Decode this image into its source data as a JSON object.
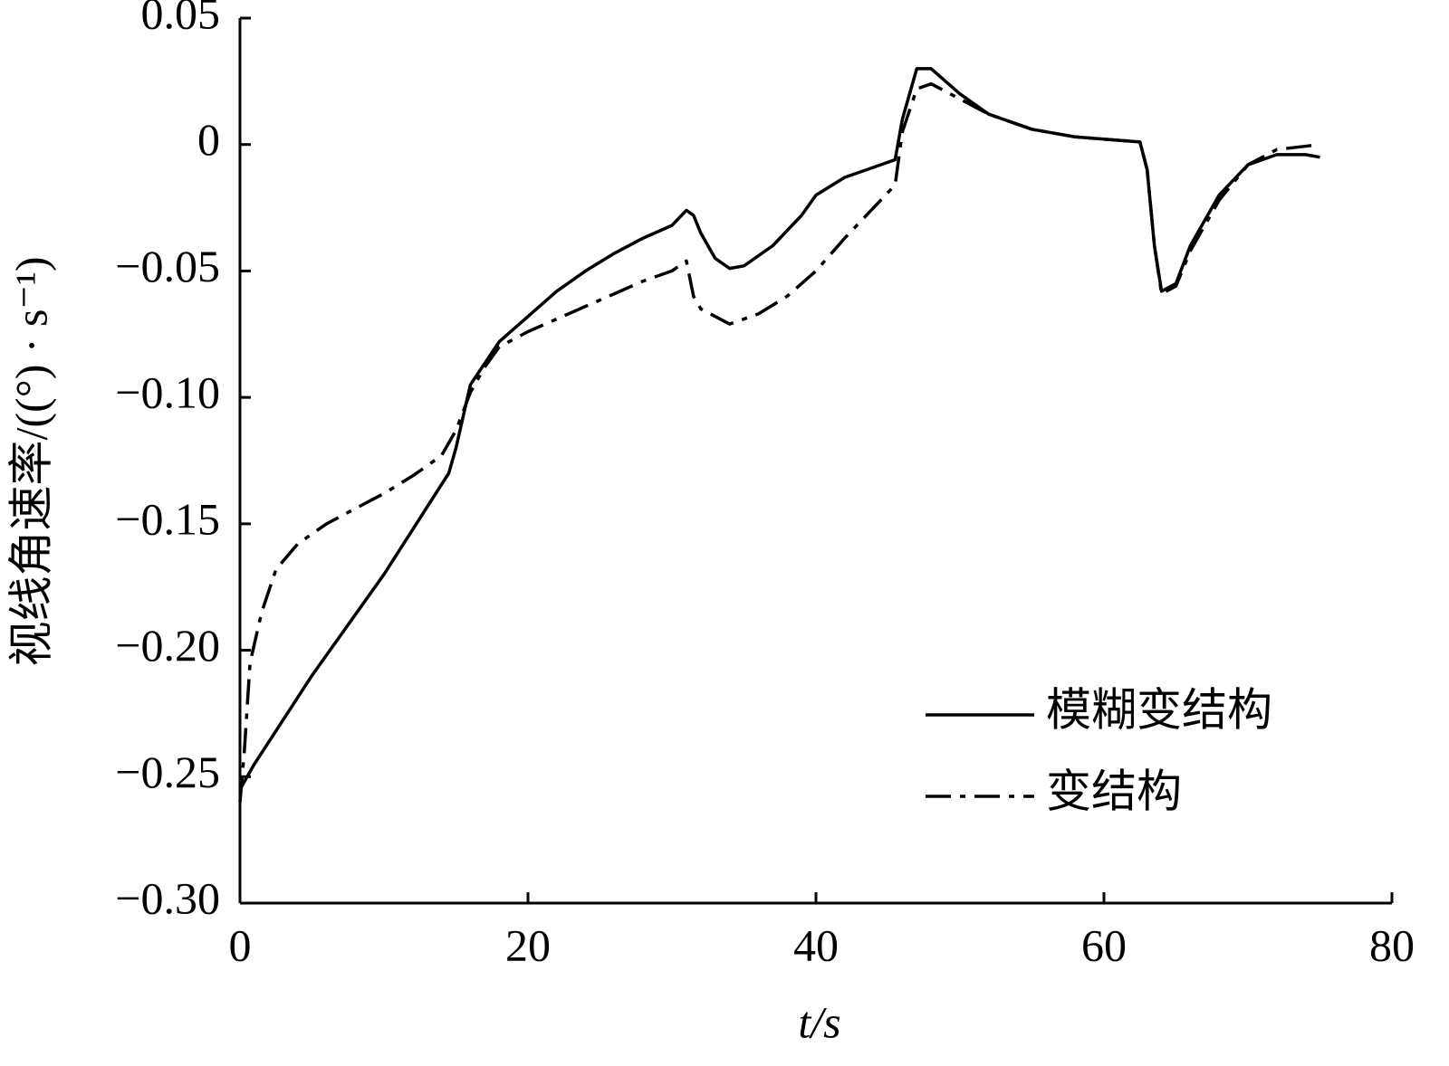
{
  "chart_data": {
    "type": "line",
    "xlabel": "t/s",
    "ylabel": "视线角速率/((°) · s⁻¹)",
    "xlim": [
      0,
      80
    ],
    "xticks": [
      0,
      20,
      40,
      60,
      80
    ],
    "ylim": [
      -0.3,
      0.05
    ],
    "yticks": [
      {
        "value": -0.3,
        "label": "−0.30"
      },
      {
        "value": -0.25,
        "label": "−0.25"
      },
      {
        "value": -0.2,
        "label": "−0.20"
      },
      {
        "value": -0.15,
        "label": "−0.15"
      },
      {
        "value": -0.1,
        "label": "−0.10"
      },
      {
        "value": -0.05,
        "label": "−0.05"
      },
      0,
      0.05
    ],
    "legend": "lower right",
    "series": [
      {
        "name": "模糊变结构",
        "color": "#000000",
        "line_style": "solid",
        "x": [
          0,
          1,
          5,
          10,
          14.5,
          15,
          16,
          18,
          20,
          22,
          24,
          26,
          28,
          30,
          31,
          31.5,
          32,
          33,
          34,
          35,
          37,
          39,
          40,
          42,
          44,
          45.5,
          46,
          47,
          48,
          50,
          52,
          55,
          58,
          62.5,
          63,
          63.5,
          64,
          65,
          66,
          68,
          70,
          72,
          74,
          75
        ],
        "values": [
          -0.255,
          -0.245,
          -0.21,
          -0.17,
          -0.13,
          -0.12,
          -0.095,
          -0.078,
          -0.068,
          -0.058,
          -0.05,
          -0.043,
          -0.037,
          -0.032,
          -0.026,
          -0.028,
          -0.035,
          -0.045,
          -0.049,
          -0.048,
          -0.04,
          -0.028,
          -0.02,
          -0.013,
          -0.009,
          -0.006,
          0.01,
          0.03,
          0.03,
          0.02,
          0.012,
          0.006,
          0.003,
          0.001,
          -0.01,
          -0.04,
          -0.058,
          -0.055,
          -0.04,
          -0.02,
          -0.008,
          -0.004,
          -0.004,
          -0.005
        ]
      },
      {
        "name": "变结构",
        "color": "#000000",
        "line_style": "dashdot",
        "x": [
          0,
          0.3,
          0.7,
          1.5,
          2.5,
          4,
          6,
          8,
          10,
          12,
          14,
          15,
          16,
          17,
          18,
          20,
          22,
          24,
          26,
          28,
          30,
          31,
          31.5,
          32,
          34,
          36,
          38,
          40,
          42,
          44,
          45.5,
          46,
          47,
          48,
          50,
          52,
          55,
          58,
          62.5,
          63,
          63.5,
          64,
          65,
          66,
          68,
          70,
          72,
          75
        ],
        "values": [
          -0.26,
          -0.24,
          -0.205,
          -0.185,
          -0.168,
          -0.158,
          -0.15,
          -0.144,
          -0.138,
          -0.131,
          -0.123,
          -0.113,
          -0.098,
          -0.088,
          -0.08,
          -0.074,
          -0.069,
          -0.064,
          -0.059,
          -0.054,
          -0.05,
          -0.046,
          -0.06,
          -0.065,
          -0.071,
          -0.067,
          -0.06,
          -0.05,
          -0.037,
          -0.025,
          -0.016,
          0.005,
          0.022,
          0.024,
          0.018,
          0.012,
          0.006,
          0.003,
          0.001,
          -0.01,
          -0.04,
          -0.059,
          -0.056,
          -0.042,
          -0.022,
          -0.008,
          -0.002,
          0
        ]
      }
    ]
  }
}
